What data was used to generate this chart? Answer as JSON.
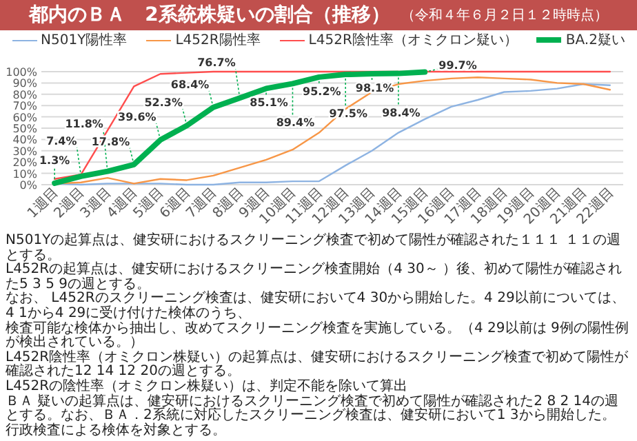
{
  "chart_data": {
    "type": "line",
    "title": "都内のＢＡ　2系統株疑いの割合（推移）",
    "subtitle": "（令和４年６月２日１２時時点）",
    "categories": [
      "1週目",
      "2週目",
      "3週目",
      "4週目",
      "5週目",
      "6週目",
      "7週目",
      "8週目",
      "9週目",
      "10週目",
      "11週目",
      "12週目",
      "13週目",
      "14週目",
      "15週目",
      "16週目",
      "17週目",
      "18週目",
      "19週目",
      "20週目",
      "21週目",
      "22週目"
    ],
    "series": [
      {
        "name": "N501Y陽性率",
        "color": "#8db3e2",
        "values": [
          1,
          0,
          1,
          1,
          1,
          0,
          0,
          2,
          2,
          3,
          3,
          17,
          30,
          46,
          58,
          69,
          75,
          82,
          83,
          85,
          89,
          88
        ]
      },
      {
        "name": "L452R陽性率",
        "color": "#f79646",
        "values": [
          1,
          2,
          6,
          1,
          5,
          4,
          8,
          15,
          22,
          31,
          46,
          67,
          82,
          89,
          92,
          94,
          95,
          94,
          93,
          90,
          89,
          84
        ]
      },
      {
        "name": "L452R陰性率（オミクロン疑い）",
        "color": "#ff4d4d",
        "values": [
          5,
          9,
          48,
          87,
          98,
          99,
          100,
          100,
          100,
          100,
          100,
          100,
          100,
          100,
          100,
          100,
          100,
          100,
          100,
          100,
          100,
          100
        ]
      },
      {
        "name": "BA.2疑い",
        "color": "#00b050",
        "values": [
          1.3,
          7.4,
          11.8,
          17.8,
          39.6,
          52.3,
          68.4,
          76.7,
          85.1,
          89.4,
          95.2,
          97.5,
          98.1,
          98.4,
          99.7,
          null,
          null,
          null,
          null,
          null,
          null,
          null
        ],
        "value_labels": [
          "1.3%",
          "7.4%",
          "11.8%",
          "17.8%",
          "39.6%",
          "52.3%",
          "68.4%",
          "76.7%",
          "85.1%",
          "89.4%",
          "95.2%",
          "97.5%",
          "98.1%",
          "98.4%",
          "99.7%",
          null,
          null,
          null,
          null,
          null,
          null,
          null
        ]
      }
    ],
    "ylim": [
      0,
      100
    ],
    "yticks": [
      {
        "value": 0,
        "label": "0%"
      },
      {
        "value": 10,
        "label": "10%"
      },
      {
        "value": 20,
        "label": "20%"
      },
      {
        "value": 30,
        "label": "30%"
      },
      {
        "value": 40,
        "label": "40%"
      },
      {
        "value": 50,
        "label": "50%"
      },
      {
        "value": 60,
        "label": "60%"
      },
      {
        "value": 70,
        "label": "70%"
      },
      {
        "value": 80,
        "label": "80%"
      },
      {
        "value": 90,
        "label": "90%"
      },
      {
        "value": 100,
        "label": "100%"
      }
    ],
    "grid": "y",
    "legend": "top",
    "annotations": [
      "N501Yの起算点は、健安研におけるスクリーニング検査で初めて陽性が確認された１１１ １１の週とする。",
      "L452Rの起算点は、健安研におけるスクリーニング検査開始（4 30～ ）後、初めて陽性が確認された5 3 5 9の週とする。",
      "なお、 L452Rのスクリーニング検査は、健安研において4 30から開始した。4 29以前については、4 1から4 29に受け付けた検体のうち、",
      "検査可能な検体から抽出し、改めてスクリーニング検査を実施している。（4 29以前は 9例の陽性例が検出されている。）",
      "L452R陰性率（オミクロン株疑い）の起算点は、健安研におけるスクリーニング検査で初めて陽性が確認された12 14 12 20の週とする。",
      "L452Rの陰性率（オミクロン株疑い）は、判定不能を除いて算出",
      "ＢＡ 疑いの起算点は、健安研におけるスクリーニング検査で初めて陽性が確認された2 8 2 14の週とする。なお、ＢＡ．2系統に対応したスクリーニング検査は、健安研において1 3から開始した。",
      "行政検査による検体を対象とする。"
    ]
  }
}
